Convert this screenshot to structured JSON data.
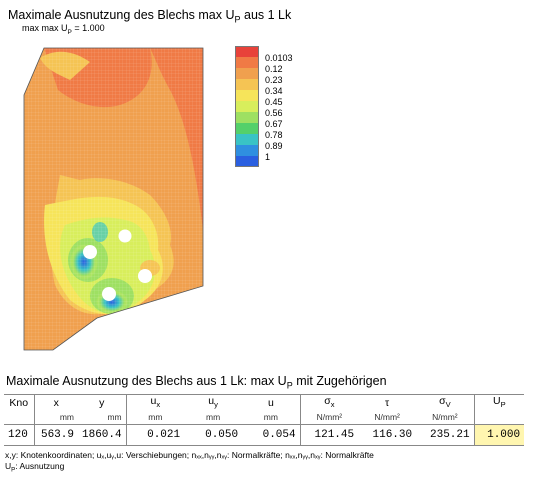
{
  "plot": {
    "title": "Maximale Ausnutzung des Blechs max U",
    "title_sub": "P",
    "title_suffix": " aus 1 Lk",
    "subtitle_prefix": "max max U",
    "subtitle_sub": "P",
    "subtitle_suffix": " = 1.000"
  },
  "legend": {
    "colors": [
      "#e8423a",
      "#f07a45",
      "#f0a04e",
      "#f5c454",
      "#f6e45a",
      "#d8ee5c",
      "#9ee062",
      "#54d06a",
      "#39c3c5",
      "#2f8fe0",
      "#2a5fe0"
    ],
    "labels": [
      "0.0103",
      "0.12",
      "0.23",
      "0.34",
      "0.45",
      "0.56",
      "0.67",
      "0.78",
      "0.89",
      "1"
    ]
  },
  "table": {
    "title": "Maximale Ausnutzung des Blechs aus 1 Lk: max U",
    "title_sub": "P",
    "title_suffix": " mit Zugehörigen",
    "headers": {
      "kno": "Kno",
      "x": "x",
      "y": "y",
      "ux": "u",
      "ux_sub": "x",
      "uy": "u",
      "uy_sub": "y",
      "u": "u",
      "sx": "σ",
      "sx_sub": "x",
      "tau": "τ",
      "sv": "σ",
      "sv_sub": "V",
      "up": "U",
      "up_sub": "P"
    },
    "units": {
      "x": "mm",
      "y": "mm",
      "ux": "mm",
      "uy": "mm",
      "u": "mm",
      "sx": "N/mm²",
      "tau": "N/mm²",
      "sv": "N/mm²"
    },
    "row": {
      "kno": "120",
      "x": "563.9",
      "y": "1860.4",
      "ux": "0.021",
      "uy": "0.050",
      "u": "0.054",
      "sx": "121.45",
      "tau": "116.30",
      "sv": "235.21",
      "up": "1.000"
    }
  },
  "notes": {
    "line1": "x,y: Knotenkoordinaten;  uₓ,uᵧ,u: Verschiebungen;  nₓₓ,nᵧᵧ,nₓᵧ: Normalkräfte;  nₓₓ,nᵧᵧ,nₓᵧ: Normalkräfte",
    "line2_prefix": "U",
    "line2_sub": "P",
    "line2_suffix": ": Ausnutzung"
  }
}
